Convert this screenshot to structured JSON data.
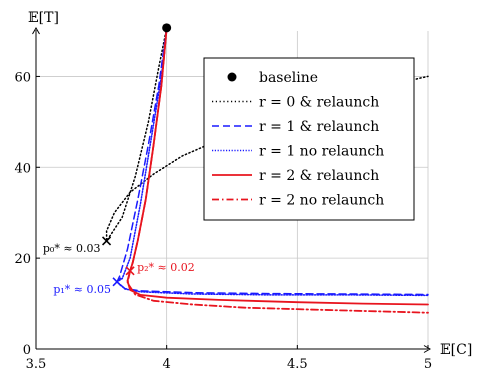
{
  "chart_data": {
    "type": "line",
    "xlabel": "𝔼[C]",
    "ylabel": "𝔼[T]",
    "xlim": [
      3.5,
      5
    ],
    "ylim": [
      0,
      70
    ],
    "xticks": [
      3.5,
      4,
      4.5,
      5
    ],
    "xtick_labels": [
      "3.5",
      "4",
      "4.5",
      "5"
    ],
    "yticks": [
      0,
      20,
      40,
      60
    ],
    "ytick_labels": [
      "0",
      "20",
      "40",
      "60"
    ],
    "grid": true,
    "legend_position": "top-right",
    "series": [
      {
        "name": "baseline",
        "kind": "marker",
        "color": "#000000",
        "points": [
          [
            4.0,
            70.7
          ]
        ]
      },
      {
        "name": "r = 0 & relaunch",
        "color": "#000000",
        "dash": "dotted",
        "points": [
          [
            4.0,
            70.7
          ],
          [
            3.97,
            62
          ],
          [
            3.93,
            50
          ],
          [
            3.88,
            38
          ],
          [
            3.83,
            29
          ],
          [
            3.79,
            25.5
          ],
          [
            3.77,
            23.8
          ],
          [
            3.77,
            26
          ],
          [
            3.8,
            30
          ],
          [
            3.86,
            34.5
          ],
          [
            3.95,
            38.5
          ],
          [
            4.06,
            42.5
          ],
          [
            4.2,
            46
          ],
          [
            4.36,
            49.5
          ],
          [
            4.55,
            53
          ],
          [
            4.75,
            56
          ],
          [
            4.96,
            59.5
          ],
          [
            5.0,
            60
          ]
        ]
      },
      {
        "name": "r = 1 & relaunch",
        "color": "#1a1aff",
        "dash": "dashed",
        "points": [
          [
            4.0,
            70.7
          ],
          [
            3.97,
            58
          ],
          [
            3.93,
            45
          ],
          [
            3.89,
            33
          ],
          [
            3.85,
            22
          ],
          [
            3.82,
            16
          ],
          [
            3.81,
            14.8
          ],
          [
            3.84,
            13.3
          ],
          [
            3.9,
            12.8
          ],
          [
            4.1,
            12.4
          ],
          [
            4.4,
            12.2
          ],
          [
            4.7,
            12.1
          ],
          [
            5.0,
            12.0
          ]
        ]
      },
      {
        "name": "r = 1 no relaunch",
        "color": "#1a1aff",
        "dash": "densely-dotted",
        "points": [
          [
            4.0,
            70.7
          ],
          [
            3.98,
            60
          ],
          [
            3.94,
            46
          ],
          [
            3.9,
            32
          ],
          [
            3.86,
            20
          ],
          [
            3.83,
            15.5
          ],
          [
            3.81,
            14.8
          ],
          [
            3.84,
            13.2
          ],
          [
            3.9,
            12.6
          ],
          [
            4.1,
            12.1
          ],
          [
            4.4,
            11.9
          ],
          [
            4.7,
            11.9
          ],
          [
            5.0,
            11.8
          ]
        ]
      },
      {
        "name": "r = 2 & relaunch",
        "color": "#e8141e",
        "dash": "solid",
        "points": [
          [
            4.0,
            70.7
          ],
          [
            3.98,
            58
          ],
          [
            3.95,
            45
          ],
          [
            3.92,
            33
          ],
          [
            3.89,
            24
          ],
          [
            3.87,
            19
          ],
          [
            3.86,
            17.2
          ],
          [
            3.85,
            15
          ],
          [
            3.86,
            13
          ],
          [
            3.9,
            11.9
          ],
          [
            4.0,
            11.3
          ],
          [
            4.2,
            10.8
          ],
          [
            4.5,
            10.3
          ],
          [
            4.75,
            10.0
          ],
          [
            5.0,
            9.8
          ]
        ]
      },
      {
        "name": "r = 2 no relaunch",
        "color": "#e8141e",
        "dash": "dash-dot",
        "points": [
          [
            4.0,
            70.7
          ],
          [
            3.98,
            58
          ],
          [
            3.95,
            45
          ],
          [
            3.92,
            33
          ],
          [
            3.89,
            24
          ],
          [
            3.87,
            19
          ],
          [
            3.86,
            17.2
          ],
          [
            3.85,
            14.5
          ],
          [
            3.88,
            12
          ],
          [
            3.95,
            10.6
          ],
          [
            4.1,
            9.8
          ],
          [
            4.3,
            9.1
          ],
          [
            4.6,
            8.6
          ],
          [
            5.0,
            8.0
          ]
        ]
      }
    ],
    "annotations": [
      {
        "label": "p₀* ≈ 0.03",
        "x": 3.77,
        "y": 23.8,
        "color": "#000000",
        "marker": "x",
        "anchor": "left-below"
      },
      {
        "label": "p₁* ≈ 0.05",
        "x": 3.81,
        "y": 14.8,
        "color": "#1a1aff",
        "marker": "x",
        "anchor": "left-below"
      },
      {
        "label": "p₂* ≈ 0.02",
        "x": 3.86,
        "y": 17.2,
        "color": "#e8141e",
        "marker": "x",
        "anchor": "right"
      }
    ]
  }
}
